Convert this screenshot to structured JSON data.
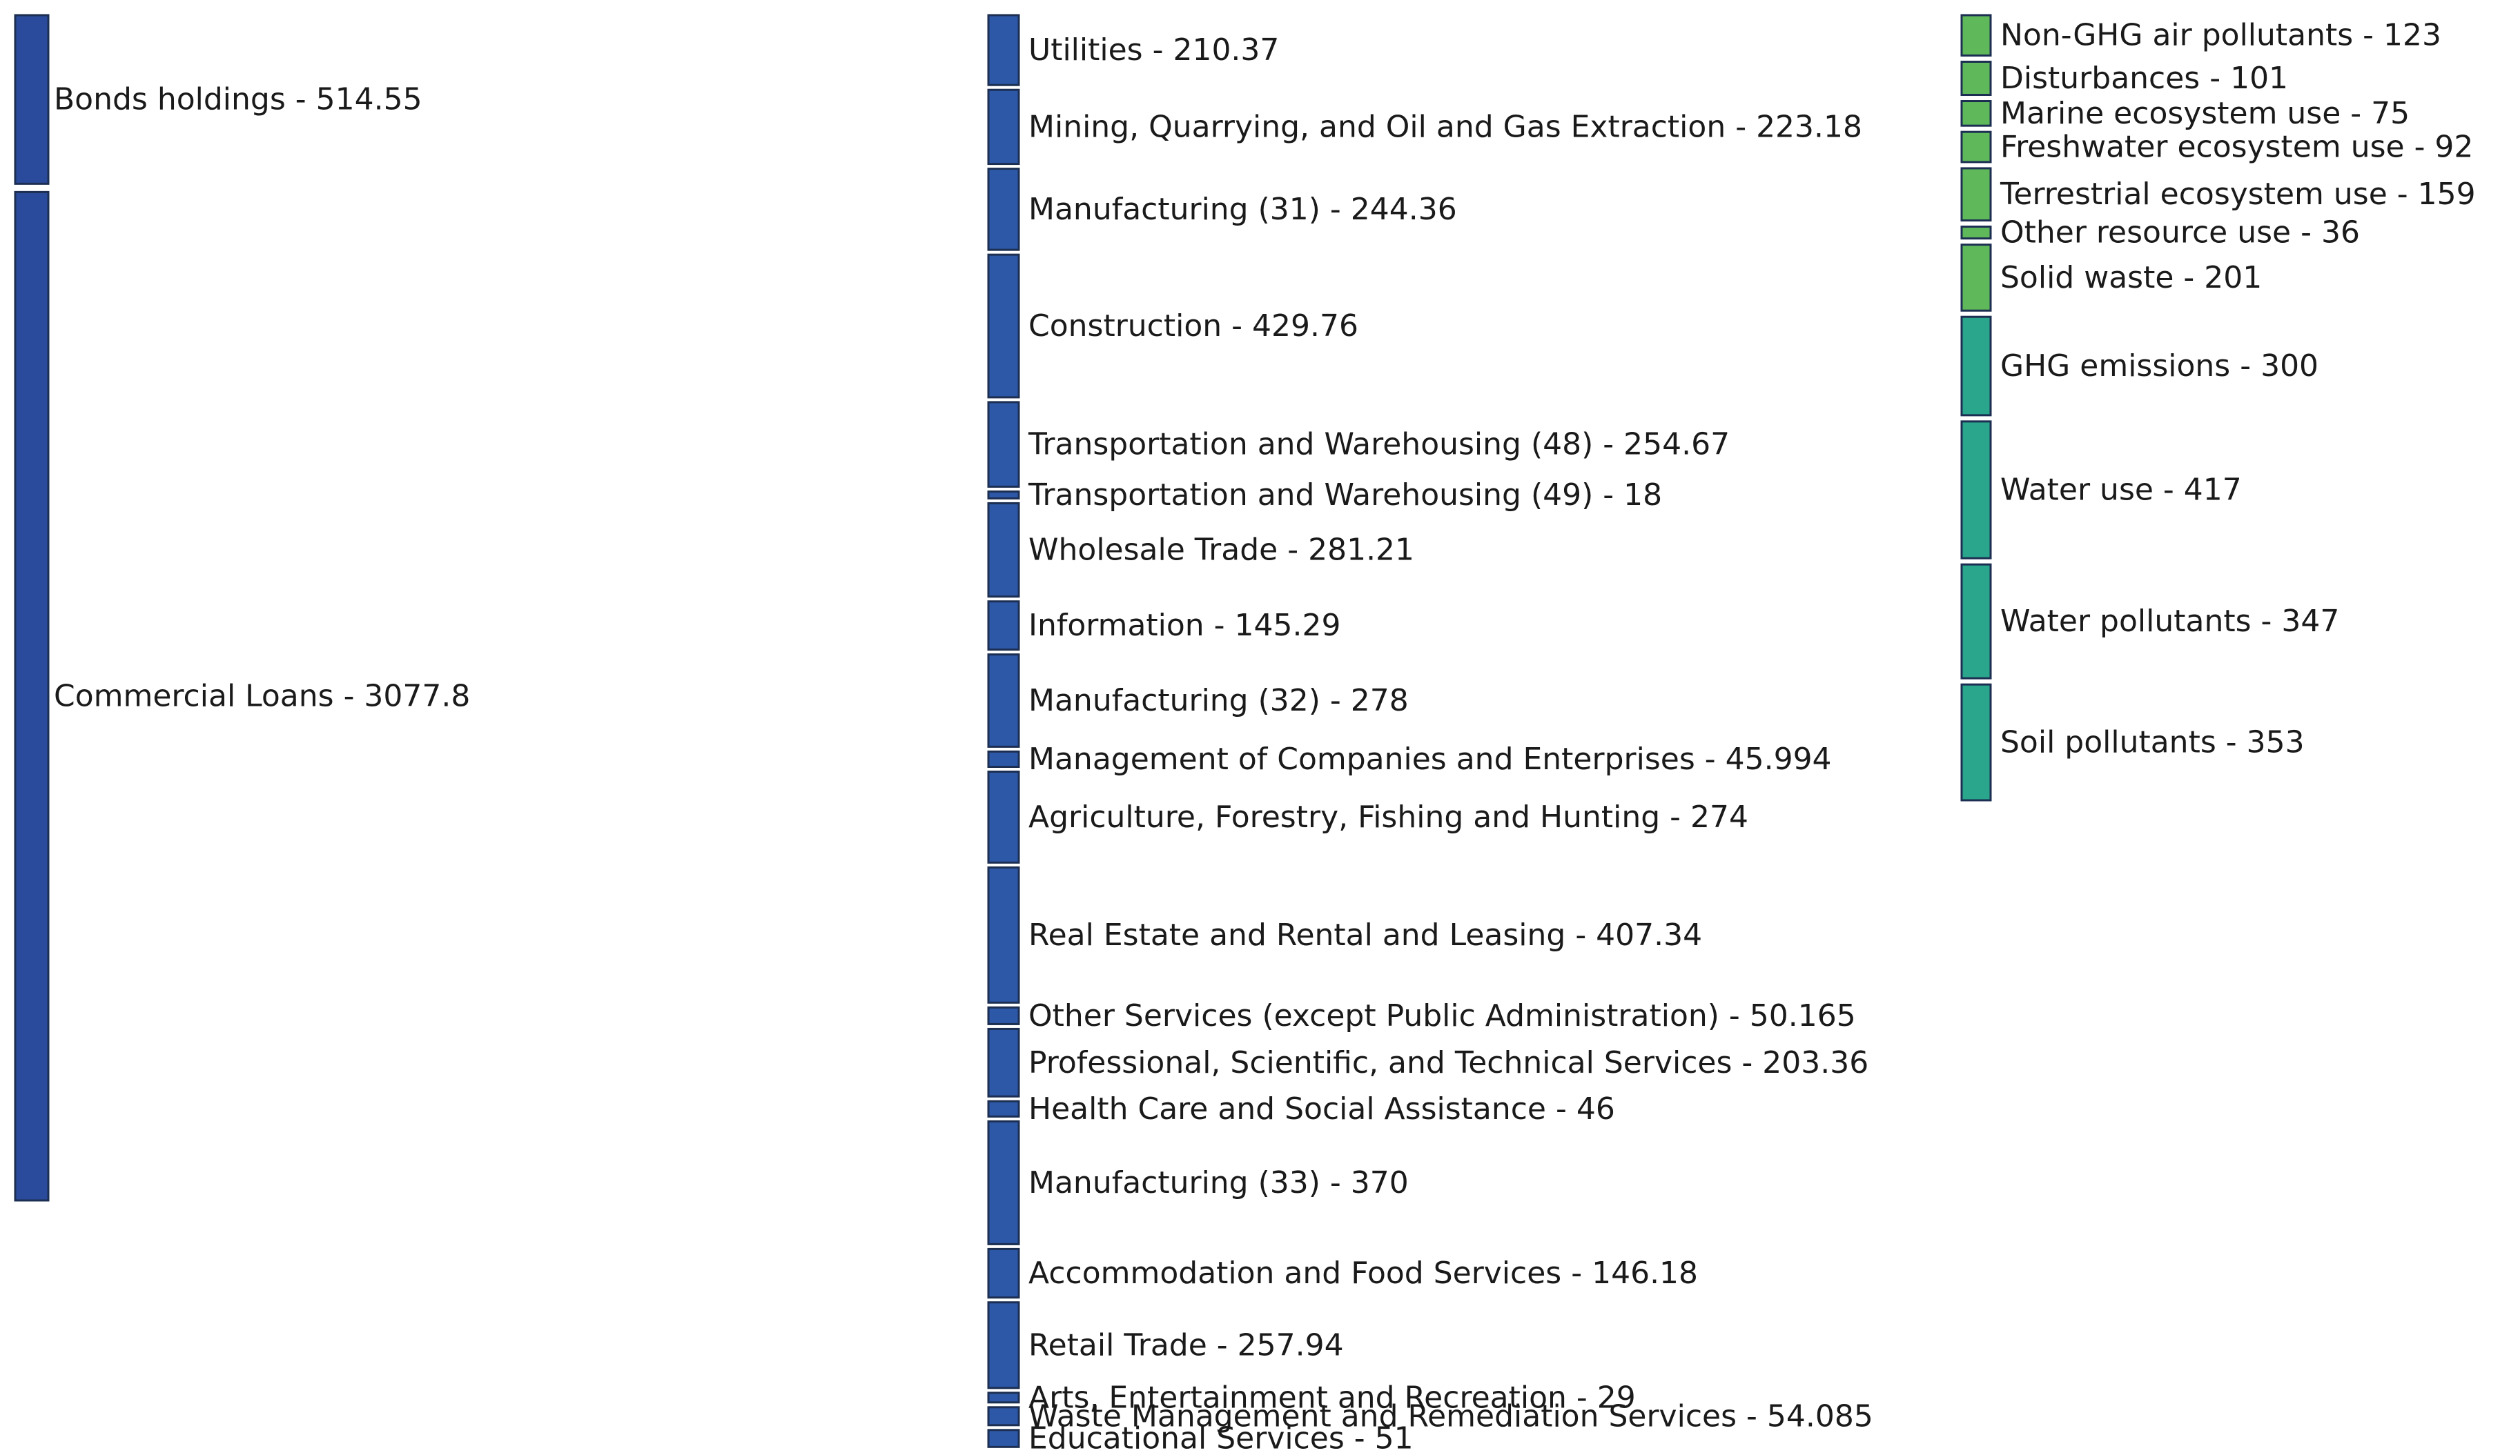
{
  "chart_data": {
    "type": "sankey",
    "colors": {
      "source_node": "#2a4b9b",
      "sector_node": "#2d58a8",
      "impact_node_green": "#5fb85a",
      "impact_node_teal": "#2aa68c",
      "flow_palette": [
        "#5aa9d6",
        "#4cc3c0",
        "#6670c0",
        "#3f62b0",
        "#69b6e2"
      ],
      "impact_flow": "#3cb68e"
    },
    "columns": [
      {
        "column": "source",
        "nodes": [
          {
            "id": "bonds",
            "label": "Bonds holdings - 514.55",
            "value": 514.55
          },
          {
            "id": "loans",
            "label": "Commercial Loans - 3077.8",
            "value": 3077.8
          }
        ]
      },
      {
        "column": "sector",
        "nodes": [
          {
            "id": "util",
            "label": "Utilities - 210.37",
            "value": 210.37
          },
          {
            "id": "mine",
            "label": "Mining, Quarrying, and Oil and Gas Extraction - 223.18",
            "value": 223.18
          },
          {
            "id": "man31",
            "label": "Manufacturing (31) - 244.36",
            "value": 244.36
          },
          {
            "id": "cons",
            "label": "Construction - 429.76",
            "value": 429.76
          },
          {
            "id": "tw48",
            "label": "Transportation and Warehousing (48) - 254.67",
            "value": 254.67
          },
          {
            "id": "tw49",
            "label": "Transportation and Warehousing (49) - 18",
            "value": 18
          },
          {
            "id": "whol",
            "label": "Wholesale Trade - 281.21",
            "value": 281.21
          },
          {
            "id": "info",
            "label": "Information - 145.29",
            "value": 145.29
          },
          {
            "id": "man32",
            "label": "Manufacturing (32) - 278",
            "value": 278
          },
          {
            "id": "mgmt",
            "label": "Management of Companies and Enterprises - 45.994",
            "value": 45.994
          },
          {
            "id": "agri",
            "label": "Agriculture, Forestry, Fishing and Hunting - 274",
            "value": 274
          },
          {
            "id": "real",
            "label": "Real Estate and Rental and Leasing - 407.34",
            "value": 407.34
          },
          {
            "id": "oth",
            "label": "Other Services (except Public Administration) - 50.165",
            "value": 50.165
          },
          {
            "id": "prof",
            "label": "Professional, Scientific, and Technical Services - 203.36",
            "value": 203.36
          },
          {
            "id": "hlth",
            "label": "Health Care and Social Assistance - 46",
            "value": 46
          },
          {
            "id": "man33",
            "label": "Manufacturing (33) - 370",
            "value": 370
          },
          {
            "id": "accm",
            "label": "Accommodation and Food Services - 146.18",
            "value": 146.18
          },
          {
            "id": "ret",
            "label": "Retail Trade - 257.94",
            "value": 257.94
          },
          {
            "id": "arts",
            "label": "Arts, Entertainment and Recreation - 29",
            "value": 29
          },
          {
            "id": "wast",
            "label": "Waste Management and Remediation Services - 54.085",
            "value": 54.085
          },
          {
            "id": "edu",
            "label": "Educational Services - 51",
            "value": 51
          }
        ]
      },
      {
        "column": "impact",
        "nodes": [
          {
            "id": "nghg",
            "label": "Non-GHG air pollutants - 123",
            "value": 123,
            "tone": "green"
          },
          {
            "id": "dist",
            "label": "Disturbances - 101",
            "value": 101,
            "tone": "green"
          },
          {
            "id": "mar",
            "label": "Marine ecosystem use - 75",
            "value": 75,
            "tone": "green"
          },
          {
            "id": "fresh",
            "label": "Freshwater ecosystem use - 92",
            "value": 92,
            "tone": "green"
          },
          {
            "id": "terr",
            "label": "Terrestrial ecosystem use - 159",
            "value": 159,
            "tone": "green"
          },
          {
            "id": "othr",
            "label": "Other resource use - 36",
            "value": 36,
            "tone": "green"
          },
          {
            "id": "solid",
            "label": "Solid waste - 201",
            "value": 201,
            "tone": "green"
          },
          {
            "id": "ghg",
            "label": "GHG emissions - 300",
            "value": 300,
            "tone": "teal"
          },
          {
            "id": "wuse",
            "label": "Water use - 417",
            "value": 417,
            "tone": "teal"
          },
          {
            "id": "wpol",
            "label": "Water pollutants - 347",
            "value": 347,
            "tone": "teal"
          },
          {
            "id": "soil",
            "label": "Soil pollutants - 353",
            "value": 353,
            "tone": "teal"
          }
        ]
      }
    ]
  }
}
